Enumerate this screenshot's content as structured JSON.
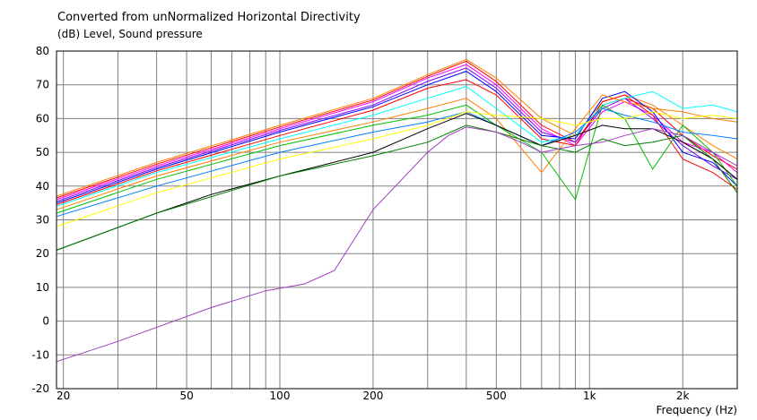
{
  "chart_data": {
    "type": "line",
    "title": "Converted from unNormalized Horizontal Directivity",
    "ylabel": "(dB)  Level, Sound pressure",
    "xlabel": "Frequency  (Hz)",
    "xscale": "log",
    "xlim": [
      19,
      3000
    ],
    "ylim": [
      -20,
      80
    ],
    "grid": true,
    "x_ticks": [
      {
        "value": 20,
        "label": "20"
      },
      {
        "value": 50,
        "label": "50"
      },
      {
        "value": 100,
        "label": "100"
      },
      {
        "value": 200,
        "label": "200"
      },
      {
        "value": 500,
        "label": "500"
      },
      {
        "value": 1000,
        "label": "1k"
      },
      {
        "value": 2000,
        "label": "2k"
      }
    ],
    "y_ticks": [
      -20,
      -10,
      0,
      10,
      20,
      30,
      40,
      50,
      60,
      70,
      80
    ],
    "series": [
      {
        "color": "#ff8000",
        "x": [
          19,
          40,
          100,
          200,
          300,
          400,
          500,
          700,
          900,
          1100,
          1300,
          1600,
          2000,
          2500,
          3000
        ],
        "y": [
          37,
          47,
          58,
          66,
          73,
          77.5,
          72,
          60,
          55,
          65,
          67,
          64,
          58,
          52,
          48
        ]
      },
      {
        "color": "#ff0000",
        "x": [
          19,
          40,
          100,
          200,
          300,
          400,
          500,
          700,
          900,
          1100,
          1300,
          1600,
          2000,
          2500,
          3000
        ],
        "y": [
          36.5,
          46.5,
          57.5,
          65.5,
          72.5,
          77,
          71,
          58,
          53,
          64,
          66,
          63,
          55,
          49,
          45
        ]
      },
      {
        "color": "#ff00ff",
        "x": [
          19,
          40,
          100,
          200,
          300,
          400,
          500,
          700,
          900,
          1100,
          1300,
          1600,
          2000,
          2500,
          3000
        ],
        "y": [
          36,
          46,
          57,
          65,
          72,
          76,
          70,
          57,
          52,
          62,
          65,
          61,
          53,
          50,
          44
        ]
      },
      {
        "color": "#8000ff",
        "x": [
          19,
          40,
          100,
          200,
          300,
          400,
          500,
          700,
          900,
          1100,
          1300,
          1600,
          2000,
          2500,
          3000
        ],
        "y": [
          35.5,
          45.5,
          56.5,
          64,
          71,
          75,
          69,
          56,
          53,
          63,
          66,
          60,
          52,
          46,
          42
        ]
      },
      {
        "color": "#0000ff",
        "x": [
          19,
          40,
          100,
          200,
          300,
          400,
          500,
          700,
          900,
          1100,
          1300,
          1600,
          2000,
          2500,
          3000
        ],
        "y": [
          35,
          45,
          56,
          63.5,
          70,
          74,
          68,
          55,
          54,
          66,
          68,
          62,
          50,
          47,
          40
        ]
      },
      {
        "color": "#ff0000",
        "x": [
          19,
          40,
          100,
          200,
          300,
          400,
          500,
          700,
          900,
          1100,
          1300,
          1600,
          2000,
          2500,
          3000
        ],
        "y": [
          34.5,
          44.5,
          55,
          62.5,
          69,
          71.5,
          67,
          54,
          52,
          65,
          67,
          61,
          48,
          44,
          39
        ]
      },
      {
        "color": "#00ffff",
        "x": [
          19,
          40,
          100,
          200,
          300,
          400,
          500,
          700,
          900,
          1100,
          1300,
          1600,
          2000,
          2500,
          3000
        ],
        "y": [
          34,
          44,
          54,
          61,
          66,
          69.5,
          63,
          53,
          55,
          64,
          66,
          68,
          63,
          64,
          62
        ]
      },
      {
        "color": "#ff8000",
        "x": [
          19,
          40,
          100,
          200,
          300,
          400,
          500,
          700,
          900,
          1100,
          1300,
          1600,
          2000,
          2500,
          3000
        ],
        "y": [
          33,
          43,
          53,
          59,
          63,
          66,
          60,
          44,
          57,
          67,
          65,
          63,
          62,
          60,
          59
        ]
      },
      {
        "color": "#00c000",
        "x": [
          19,
          40,
          100,
          200,
          300,
          400,
          500,
          700,
          900,
          1100,
          1300,
          1600,
          2000,
          2500,
          3000
        ],
        "y": [
          32,
          42,
          52,
          58,
          61,
          64,
          58,
          50,
          36,
          64,
          60,
          45,
          58,
          50,
          40
        ]
      },
      {
        "color": "#0080ff",
        "x": [
          19,
          40,
          100,
          200,
          300,
          400,
          500,
          700,
          900,
          1100,
          1300,
          1600,
          2000,
          2500,
          3000
        ],
        "y": [
          31,
          40,
          50,
          56,
          59,
          62,
          58,
          52,
          56,
          63,
          61,
          59,
          56,
          55,
          54
        ]
      },
      {
        "color": "#ffff00",
        "x": [
          19,
          40,
          100,
          200,
          300,
          400,
          500,
          700,
          900,
          1100,
          1300,
          1600,
          2000,
          2500,
          3000
        ],
        "y": [
          28,
          38,
          48,
          54,
          58,
          62,
          61,
          60,
          58,
          60,
          60,
          62,
          60,
          61,
          60
        ]
      },
      {
        "color": "#000000",
        "x": [
          19,
          40,
          60,
          100,
          200,
          300,
          400,
          500,
          700,
          900,
          1100,
          1300,
          1600,
          2000,
          2500,
          3000
        ],
        "y": [
          21,
          32,
          37.5,
          43,
          50,
          57,
          61.5,
          58,
          52,
          55,
          58,
          57,
          57,
          53,
          48,
          42
        ]
      },
      {
        "color": "#008000",
        "x": [
          19,
          40,
          100,
          200,
          300,
          400,
          500,
          700,
          900,
          1100,
          1300,
          1600,
          2000,
          2500,
          3000
        ],
        "y": [
          21,
          32,
          43,
          49,
          53,
          58,
          56,
          52,
          50,
          54,
          52,
          53,
          55,
          48,
          38
        ]
      },
      {
        "color": "#a040c0",
        "x": [
          19,
          30,
          60,
          90,
          120,
          150,
          200,
          300,
          350,
          400,
          500,
          600,
          700,
          900,
          1100,
          1300,
          1600,
          2000,
          2500,
          3000
        ],
        "y": [
          -12,
          -6,
          4,
          9,
          11,
          15,
          33,
          50,
          55,
          57.5,
          56,
          53,
          50,
          52,
          53,
          55,
          57,
          55,
          50,
          46
        ]
      }
    ]
  }
}
